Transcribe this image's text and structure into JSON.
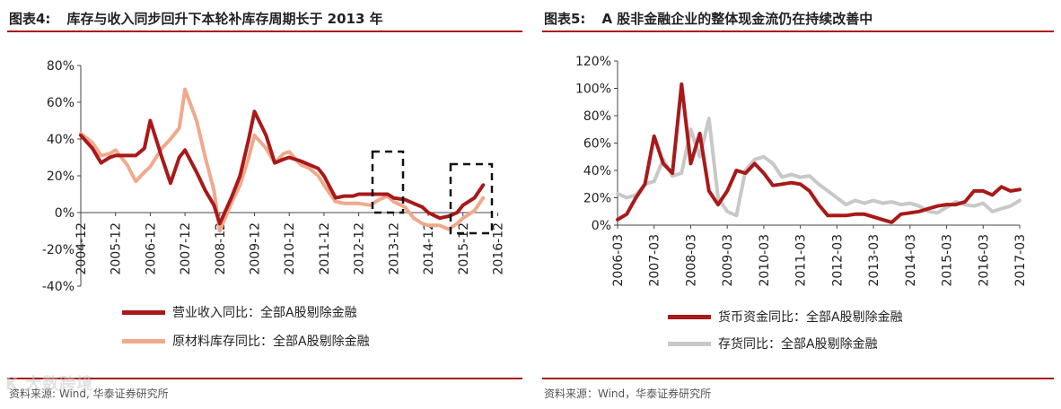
{
  "left_panel": {
    "title_num": "图表4:",
    "title_text": "库存与收入同步回升下本轮补库存周期长于 2013 年",
    "source": "资料来源: Wind, 华泰证券研究所",
    "colors": {
      "s1": "#a8191a",
      "s2": "#f0a98c"
    }
  },
  "right_panel": {
    "title_num": "图表5:",
    "title_text": "A 股非金融企业的整体现金流仍在持续改善中",
    "source": "资料来源：Wind，华泰证券研究所",
    "colors": {
      "s1": "#a8191a",
      "s2": "#c8c8c8"
    }
  },
  "watermark": "K 大数跨境",
  "chart_data": [
    {
      "type": "line",
      "x": [
        2004.917,
        2005.25,
        2005.5,
        2005.75,
        2005.917,
        2006.25,
        2006.5,
        2006.75,
        2006.917,
        2007.25,
        2007.5,
        2007.75,
        2007.917,
        2008.25,
        2008.5,
        2008.75,
        2008.917,
        2009.25,
        2009.5,
        2009.75,
        2009.917,
        2010.25,
        2010.5,
        2010.75,
        2010.917,
        2011.25,
        2011.5,
        2011.75,
        2011.917,
        2012.25,
        2012.5,
        2012.75,
        2012.917,
        2013.25,
        2013.5,
        2013.75,
        2013.917,
        2014.25,
        2014.5,
        2014.75,
        2014.917,
        2015.25,
        2015.5,
        2015.75,
        2015.917,
        2016.25,
        2016.5
      ],
      "series": [
        {
          "name": "营业收入同比：全部A股剔除金融",
          "values": [
            42,
            35,
            27,
            30,
            31,
            31,
            31,
            35,
            50,
            30,
            16,
            30,
            34,
            22,
            12,
            4,
            -6,
            8,
            20,
            40,
            55,
            42,
            27,
            29,
            30,
            28,
            26,
            24,
            20,
            8,
            9,
            9,
            10,
            10,
            10,
            10,
            8,
            7,
            5,
            3,
            0,
            -3,
            -2,
            0,
            4,
            8,
            15
          ]
        },
        {
          "name": "原材料库存同比：全部A股剔除金融",
          "values": [
            43,
            38,
            31,
            32,
            34,
            26,
            17,
            22,
            25,
            35,
            40,
            46,
            67,
            50,
            30,
            12,
            -10,
            5,
            15,
            30,
            42,
            35,
            27,
            32,
            33,
            26,
            24,
            20,
            15,
            6,
            5,
            5,
            5,
            4,
            7,
            9,
            6,
            3,
            -3,
            -6,
            -7,
            -7,
            -9,
            -6,
            -3,
            1,
            8
          ]
        }
      ],
      "tick_labels": [
        "2004-12",
        "2005-12",
        "2006-12",
        "2007-12",
        "2008-12",
        "2009-12",
        "2010-12",
        "2011-12",
        "2012-12",
        "2013-12",
        "2014-12",
        "2015-12",
        "2016-12"
      ],
      "y_tick_labels": [
        "80%",
        "60%",
        "40%",
        "20%",
        "0%",
        "-20%",
        "-40%"
      ],
      "ylim": [
        -40,
        80
      ]
    },
    {
      "type": "line",
      "x": [
        2006.25,
        2006.5,
        2006.75,
        2007.0,
        2007.25,
        2007.5,
        2007.75,
        2008.0,
        2008.25,
        2008.5,
        2008.75,
        2009.0,
        2009.25,
        2009.5,
        2009.75,
        2010.0,
        2010.25,
        2010.5,
        2010.75,
        2011.0,
        2011.25,
        2011.5,
        2011.75,
        2012.0,
        2012.25,
        2012.5,
        2012.75,
        2013.0,
        2013.25,
        2013.5,
        2013.75,
        2014.0,
        2014.25,
        2014.5,
        2014.75,
        2015.0,
        2015.25,
        2015.5,
        2015.75,
        2016.0,
        2016.25,
        2016.5,
        2016.75,
        2017.0,
        2017.25
      ],
      "series": [
        {
          "name": "货币资金同比：全部A股剔除金融",
          "values": [
            4,
            8,
            20,
            30,
            65,
            45,
            38,
            103,
            45,
            67,
            25,
            15,
            25,
            40,
            38,
            45,
            38,
            29,
            30,
            31,
            30,
            25,
            15,
            7,
            7,
            7,
            8,
            8,
            6,
            4,
            2,
            8,
            9,
            10,
            12,
            14,
            15,
            15,
            17,
            25,
            25,
            22,
            28,
            25,
            26
          ]
        },
        {
          "name": "存货同比：全部A股剔除金融",
          "values": [
            23,
            20,
            22,
            30,
            32,
            48,
            36,
            38,
            70,
            50,
            78,
            20,
            10,
            7,
            40,
            48,
            50,
            45,
            35,
            37,
            35,
            36,
            30,
            25,
            20,
            15,
            18,
            16,
            18,
            16,
            17,
            15,
            16,
            14,
            10,
            9,
            13,
            17,
            15,
            14,
            16,
            10,
            12,
            14,
            18
          ]
        }
      ],
      "tick_labels": [
        "2006-03",
        "2007-03",
        "2008-03",
        "2009-03",
        "2010-03",
        "2011-03",
        "2012-03",
        "2013-03",
        "2014-03",
        "2015-03",
        "2016-03",
        "2017-03"
      ],
      "y_tick_labels": [
        "120%",
        "100%",
        "80%",
        "60%",
        "40%",
        "20%",
        "0%"
      ],
      "ylim": [
        0,
        120
      ]
    }
  ]
}
